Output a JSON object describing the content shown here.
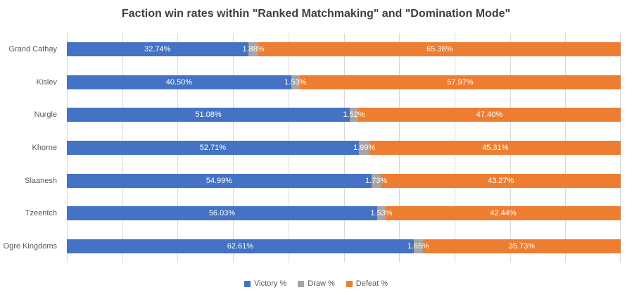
{
  "chart_data": {
    "type": "bar",
    "orientation": "horizontal",
    "stacked": true,
    "title": "Faction win rates within \"Ranked Matchmaking\" and \"Domination Mode\"",
    "categories": [
      "Grand Cathay",
      "Kislev",
      "Nurgle",
      "Khorne",
      "Slaanesh",
      "Tzeentch",
      "Ogre Kingdoms"
    ],
    "series": [
      {
        "name": "Victory %",
        "color": "#4472C4",
        "values": [
          32.74,
          40.5,
          51.08,
          52.71,
          54.99,
          56.03,
          62.61
        ],
        "labels": [
          "32.74%",
          "40.50%",
          "51.08%",
          "52.71%",
          "54.99%",
          "56.03%",
          "62.61%"
        ]
      },
      {
        "name": "Draw %",
        "color": "#A5A5A5",
        "values": [
          1.88,
          1.53,
          1.52,
          1.99,
          1.73,
          1.53,
          1.65
        ],
        "labels": [
          "1.88%",
          "1.53%",
          "1.52%",
          "1.99%",
          "1.73%",
          "1.53%",
          "1.65%"
        ]
      },
      {
        "name": "Defeat %",
        "color": "#ED7D31",
        "values": [
          65.38,
          57.97,
          47.4,
          45.31,
          43.27,
          42.44,
          35.73
        ],
        "labels": [
          "65.38%",
          "57.97%",
          "47.40%",
          "45.31%",
          "43.27%",
          "42.44%",
          "35.73%"
        ]
      }
    ],
    "xlim": [
      0,
      100
    ],
    "gridlines": {
      "axis": "x",
      "interval_percent": 10,
      "color": "#d9d9d9"
    },
    "axis_tick_labels_visible": false,
    "legend_position": "bottom",
    "data_label_color": "#ffffff",
    "background_color": "#ffffff"
  }
}
